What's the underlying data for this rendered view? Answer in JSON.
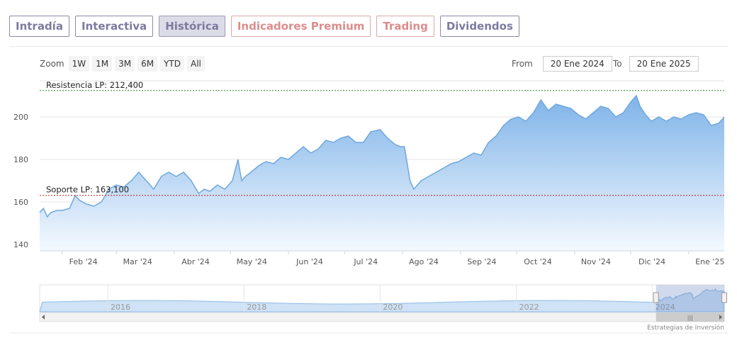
{
  "tabs": [
    {
      "label": "Intradía",
      "style": "normal"
    },
    {
      "label": "Interactiva",
      "style": "normal"
    },
    {
      "label": "Histórica",
      "style": "active"
    },
    {
      "label": "Indicadores Premium",
      "style": "red"
    },
    {
      "label": "Trading",
      "style": "red"
    },
    {
      "label": "Dividendos",
      "style": "normal"
    }
  ],
  "zoom": {
    "label": "Zoom",
    "buttons": [
      "1W",
      "1M",
      "3M",
      "6M",
      "YTD",
      "All"
    ]
  },
  "range": {
    "from_label": "From",
    "from_value": "20 Ene 2024",
    "to_label": "To",
    "to_value": "20 Ene 2025"
  },
  "colors": {
    "line": "#6fa8dc",
    "fill_top": "#7fb3e8",
    "fill_bottom": "#f4f9ff",
    "resistance": "#2e7d32",
    "support": "#b71c1c",
    "tab_text": "#7d7aa0",
    "tab_red": "#dc8c8c"
  },
  "credit": "Estrategias de Inversión",
  "chart_data": {
    "type": "area",
    "x_range": [
      "2024-01-20",
      "2025-01-20"
    ],
    "ylim": [
      137,
      217
    ],
    "yticks": [
      140,
      160,
      180,
      200
    ],
    "xticks": [
      {
        "date": "2024-02-01",
        "label": "Feb '24"
      },
      {
        "date": "2024-03-01",
        "label": "Mar '24"
      },
      {
        "date": "2024-04-01",
        "label": "Abr '24"
      },
      {
        "date": "2024-05-01",
        "label": "May '24"
      },
      {
        "date": "2024-06-01",
        "label": "Jun '24"
      },
      {
        "date": "2024-07-01",
        "label": "Jul '24"
      },
      {
        "date": "2024-08-01",
        "label": "Ago '24"
      },
      {
        "date": "2024-09-01",
        "label": "Sep '24"
      },
      {
        "date": "2024-10-01",
        "label": "Oct '24"
      },
      {
        "date": "2024-11-01",
        "label": "Nov '24"
      },
      {
        "date": "2024-12-01",
        "label": "Dic '24"
      },
      {
        "date": "2025-01-01",
        "label": "Ene '25"
      }
    ],
    "series": [
      {
        "x": [
          "2024-01-20",
          "2024-01-22",
          "2024-01-24",
          "2024-01-26",
          "2024-01-29",
          "2024-02-01",
          "2024-02-05",
          "2024-02-08",
          "2024-02-10",
          "2024-02-14",
          "2024-02-18",
          "2024-02-22",
          "2024-02-26",
          "2024-03-01",
          "2024-03-05",
          "2024-03-09",
          "2024-03-13",
          "2024-03-17",
          "2024-03-21",
          "2024-03-25",
          "2024-03-29",
          "2024-04-02",
          "2024-04-06",
          "2024-04-10",
          "2024-04-14",
          "2024-04-17",
          "2024-04-20",
          "2024-04-24",
          "2024-04-28",
          "2024-05-02",
          "2024-05-05",
          "2024-05-07",
          "2024-05-09",
          "2024-05-12",
          "2024-05-16",
          "2024-05-20",
          "2024-05-24",
          "2024-05-28",
          "2024-06-01",
          "2024-06-05",
          "2024-06-09",
          "2024-06-13",
          "2024-06-17",
          "2024-06-21",
          "2024-06-25",
          "2024-06-29",
          "2024-07-03",
          "2024-07-07",
          "2024-07-11",
          "2024-07-15",
          "2024-07-20",
          "2024-07-24",
          "2024-07-28",
          "2024-07-31",
          "2024-08-02",
          "2024-08-05",
          "2024-08-07",
          "2024-08-11",
          "2024-08-15",
          "2024-08-19",
          "2024-08-23",
          "2024-08-27",
          "2024-08-31",
          "2024-09-04",
          "2024-09-08",
          "2024-09-12",
          "2024-09-16",
          "2024-09-20",
          "2024-09-24",
          "2024-09-28",
          "2024-10-02",
          "2024-10-06",
          "2024-10-10",
          "2024-10-14",
          "2024-10-18",
          "2024-10-22",
          "2024-10-26",
          "2024-10-30",
          "2024-11-03",
          "2024-11-07",
          "2024-11-11",
          "2024-11-15",
          "2024-11-19",
          "2024-11-23",
          "2024-11-27",
          "2024-12-01",
          "2024-12-04",
          "2024-12-06",
          "2024-12-09",
          "2024-12-12",
          "2024-12-16",
          "2024-12-20",
          "2024-12-24",
          "2024-12-28",
          "2025-01-01",
          "2025-01-05",
          "2025-01-09",
          "2025-01-13",
          "2025-01-17",
          "2025-01-20"
        ],
        "values": [
          155,
          157,
          153,
          155,
          156,
          156,
          157,
          163,
          161,
          159,
          158,
          160,
          166,
          168,
          167,
          170,
          174,
          170,
          166,
          172,
          174,
          172,
          174,
          170,
          164,
          166,
          165,
          168,
          166,
          170,
          180,
          170,
          172,
          174,
          177,
          179,
          178,
          181,
          180,
          183,
          186,
          183,
          185,
          189,
          188,
          190,
          191,
          188,
          188,
          193,
          194,
          190,
          187,
          186,
          186,
          170,
          166,
          170,
          172,
          174,
          176,
          178,
          179,
          181,
          183,
          182,
          188,
          191,
          196,
          199,
          200,
          198,
          202,
          208,
          203,
          206,
          205,
          204,
          201,
          199,
          202,
          205,
          204,
          200,
          202,
          207,
          210,
          205,
          201,
          198,
          200,
          198,
          200,
          199,
          201,
          202,
          201,
          196,
          197,
          200
        ]
      }
    ],
    "annotations": [
      {
        "label": "Resistencia LP: 212,400",
        "value": 212.4
      },
      {
        "label": "Soporte LP: 163,100",
        "value": 163.1
      }
    ],
    "navigator": {
      "x_range": [
        "2015-01-01",
        "2025-01-20"
      ],
      "ticks": [
        {
          "label": "2016",
          "year": 2016
        },
        {
          "label": "2018",
          "year": 2018
        },
        {
          "label": "2020",
          "year": 2020
        },
        {
          "label": "2022",
          "year": 2022
        },
        {
          "label": "2024",
          "year": 2024
        }
      ],
      "selected": [
        "2024-01-20",
        "2025-01-20"
      ]
    }
  }
}
